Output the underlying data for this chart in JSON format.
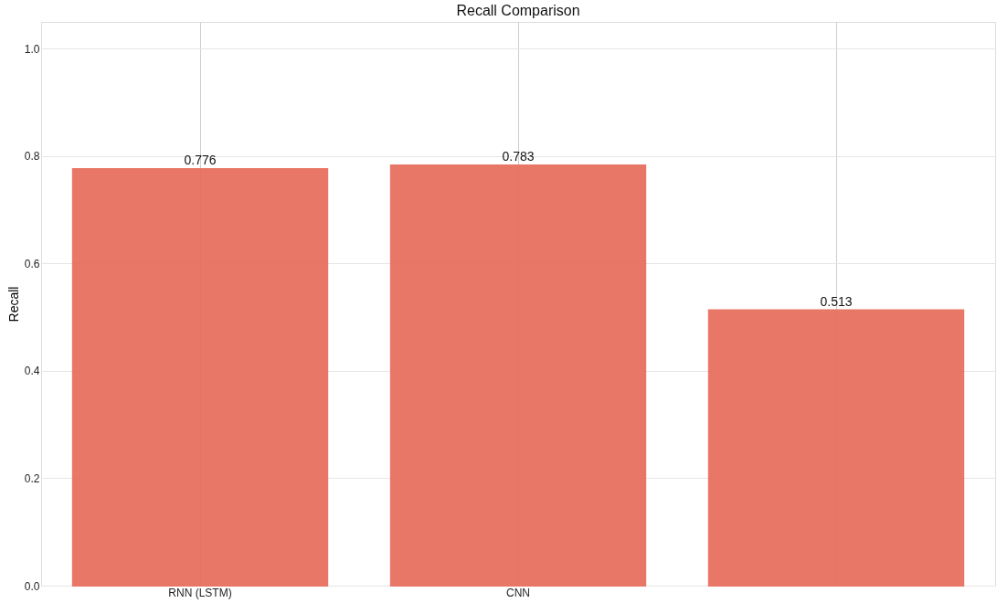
{
  "chart_data": {
    "type": "bar",
    "title": "Recall Comparison",
    "ylabel": "Recall",
    "categories": [
      "RNN (LSTM)",
      "CNN",
      null
    ],
    "values": [
      0.776,
      0.783,
      0.513
    ],
    "color": "#e8705f",
    "ylim": [
      0,
      1.05
    ],
    "yticks": [
      {
        "value": 0,
        "label": "0.0"
      },
      0.2,
      0.4,
      0.6,
      0.8,
      {
        "value": 1,
        "label": "1.0"
      }
    ],
    "grid": true,
    "data_labels": true
  }
}
